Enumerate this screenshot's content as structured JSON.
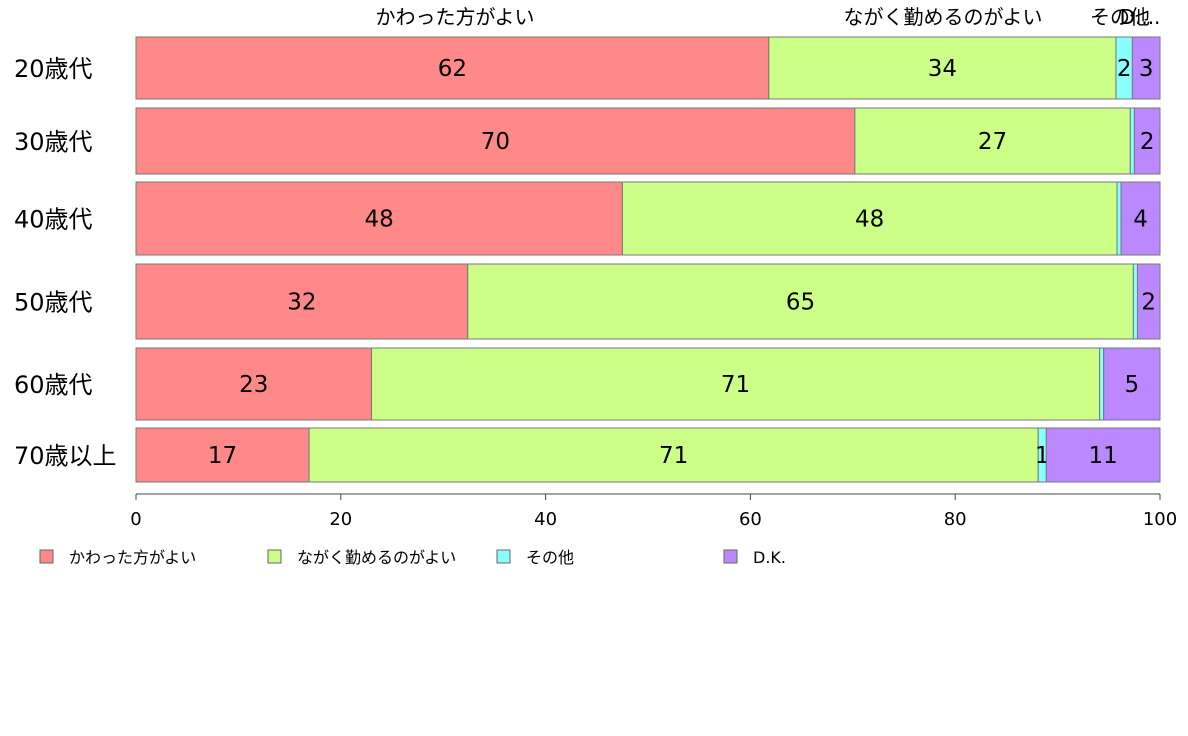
{
  "chart_data": {
    "type": "bar",
    "orientation": "horizontal",
    "stacked": true,
    "categories": [
      "20歳代",
      "30歳代",
      "40歳代",
      "50歳代",
      "60歳代",
      "70歳以上"
    ],
    "series": [
      {
        "name": "かわった方がよい",
        "color": "#FF8888",
        "values": [
          61.8,
          70.2,
          47.5,
          32.4,
          23.0,
          16.9
        ],
        "labels": [
          "62",
          "70",
          "48",
          "32",
          "23",
          "17"
        ]
      },
      {
        "name": "ながく勤めるのがよい",
        "color": "#CCFF88",
        "values": [
          33.9,
          26.9,
          48.3,
          65.0,
          71.1,
          71.2
        ],
        "labels": [
          "34",
          "27",
          "48",
          "65",
          "71",
          "71"
        ]
      },
      {
        "name": "その他",
        "color": "#88FFFF",
        "values": [
          1.6,
          0.4,
          0.4,
          0.4,
          0.4,
          0.8
        ],
        "labels": [
          "2",
          "",
          "",
          "",
          "",
          "1"
        ]
      },
      {
        "name": "D.K.",
        "color": "#BB88FF",
        "values": [
          2.7,
          2.5,
          3.8,
          2.2,
          5.5,
          11.1
        ],
        "labels": [
          "3",
          "2",
          "4",
          "2",
          "5",
          "11"
        ]
      }
    ],
    "top_labels": [
      "かわった方がよい",
      "ながく勤めるのがよい",
      "その他",
      "D...."
    ],
    "xlim": [
      0,
      100
    ],
    "xticks": [
      "0",
      "20",
      "40",
      "60",
      "80",
      "100"
    ],
    "grid": false,
    "legend_position": "bottom"
  }
}
